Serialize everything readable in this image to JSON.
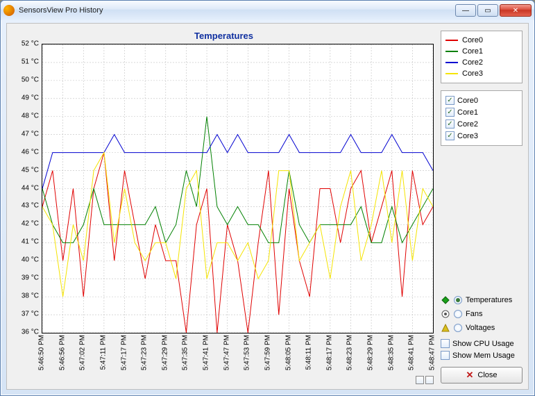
{
  "window": {
    "title": "SensorsView Pro History"
  },
  "chart": {
    "title": "Temperatures",
    "type": "line",
    "background_color": "#ffffff",
    "grid_color": "#c0c0c0",
    "axis_color": "#000000",
    "title_color": "#1030a0",
    "title_fontsize": 13,
    "y": {
      "min": 36,
      "max": 52,
      "step": 1,
      "unit": "°C",
      "ticks": [
        36,
        37,
        38,
        39,
        40,
        41,
        42,
        43,
        44,
        45,
        46,
        47,
        48,
        49,
        50,
        51,
        52
      ]
    },
    "x": {
      "labels": [
        "5:46:50 PM",
        "5:46:56 PM",
        "5:47:02 PM",
        "5:47:11 PM",
        "5:47:17 PM",
        "5:47:23 PM",
        "5:47:29 PM",
        "5:47:35 PM",
        "5:47:41 PM",
        "5:47:47 PM",
        "5:47:53 PM",
        "5:47:59 PM",
        "5:48:05 PM",
        "5:48:11 PM",
        "5:48:17 PM",
        "5:48:23 PM",
        "5:48:29 PM",
        "5:48:35 PM",
        "5:48:41 PM",
        "5:48:47 PM"
      ]
    },
    "series": [
      {
        "name": "Core0",
        "color": "#e00000",
        "line_width": 1,
        "values": [
          43,
          45,
          40,
          44,
          38,
          44,
          46,
          40,
          45,
          42,
          39,
          42,
          40,
          40,
          36,
          42,
          44,
          36,
          42,
          40,
          36,
          41,
          45,
          37,
          44,
          40,
          38,
          44,
          44,
          41,
          44,
          45,
          41,
          43,
          45,
          38,
          45,
          42,
          43
        ]
      },
      {
        "name": "Core1",
        "color": "#008000",
        "line_width": 1,
        "values": [
          44,
          42,
          41,
          41,
          42,
          44,
          42,
          42,
          42,
          42,
          42,
          43,
          41,
          42,
          45,
          43,
          48,
          43,
          42,
          43,
          42,
          42,
          41,
          41,
          45,
          42,
          41,
          42,
          42,
          42,
          42,
          43,
          41,
          41,
          43,
          41,
          42,
          43,
          44
        ]
      },
      {
        "name": "Core2",
        "color": "#0000d0",
        "line_width": 1,
        "values": [
          44,
          46,
          46,
          46,
          46,
          46,
          46,
          47,
          46,
          46,
          46,
          46,
          46,
          46,
          46,
          46,
          46,
          47,
          46,
          47,
          46,
          46,
          46,
          46,
          47,
          46,
          46,
          46,
          46,
          46,
          47,
          46,
          46,
          46,
          47,
          46,
          46,
          46,
          45
        ]
      },
      {
        "name": "Core3",
        "color": "#f5e400",
        "line_width": 1,
        "values": [
          43,
          42,
          38,
          42,
          40,
          45,
          46,
          41,
          44,
          41,
          40,
          41,
          41,
          39,
          44,
          45,
          39,
          41,
          41,
          40,
          41,
          39,
          40,
          45,
          45,
          40,
          41,
          42,
          39,
          43,
          45,
          40,
          42,
          45,
          41,
          45,
          40,
          44,
          43
        ]
      }
    ]
  },
  "legend": {
    "items": [
      {
        "label": "Core0",
        "color": "#e00000"
      },
      {
        "label": "Core1",
        "color": "#008000"
      },
      {
        "label": "Core2",
        "color": "#0000d0"
      },
      {
        "label": "Core3",
        "color": "#f5e400"
      }
    ]
  },
  "visibility_checks": {
    "items": [
      {
        "label": "Core0",
        "checked": true
      },
      {
        "label": "Core1",
        "checked": true
      },
      {
        "label": "Core2",
        "checked": true
      },
      {
        "label": "Core3",
        "checked": true
      }
    ]
  },
  "view_radios": {
    "items": [
      {
        "label": "Temperatures",
        "selected": true,
        "icon": "diamond",
        "icon_color": "#1aa01a"
      },
      {
        "label": "Fans",
        "selected": false,
        "icon": "circle",
        "icon_color": "#555555"
      },
      {
        "label": "Voltages",
        "selected": false,
        "icon": "triangle",
        "icon_color": "#d8c020"
      }
    ]
  },
  "extra_checks": {
    "items": [
      {
        "label": "Show CPU Usage",
        "checked": false
      },
      {
        "label": "Show Mem Usage",
        "checked": false
      }
    ]
  },
  "close_button": {
    "label": "Close"
  }
}
